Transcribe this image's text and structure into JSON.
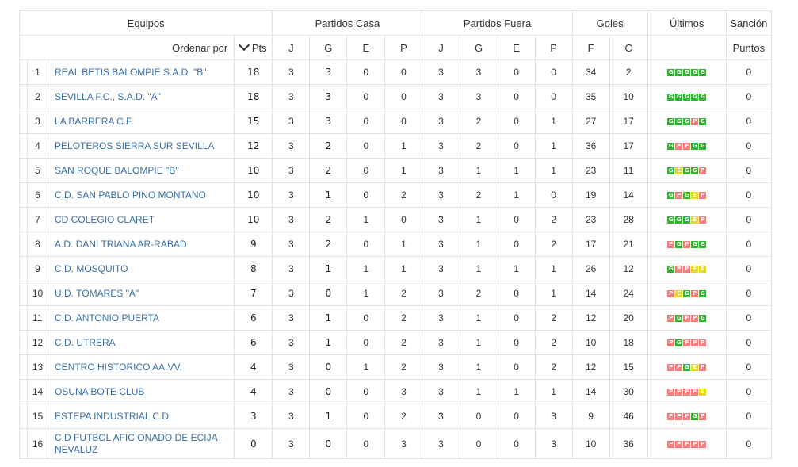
{
  "headers": {
    "equipos": "Equipos",
    "partidos_casa": "Partidos Casa",
    "partidos_fuera": "Partidos Fuera",
    "goles": "Goles",
    "ultimos": "Últimos",
    "sancion": "Sanción",
    "ordenar_por": "Ordenar por",
    "pts": "Pts",
    "j": "J",
    "g": "G",
    "e": "E",
    "p": "P",
    "f": "F",
    "c": "C",
    "puntos": "Puntos"
  },
  "colors": {
    "G": "#33b433",
    "P": "#f08080",
    "E": "#e6d92a",
    "link": "#3a70a8"
  },
  "rows": [
    {
      "pos": "1",
      "team": "REAL BETIS BALOMPIE S.A.D. \"B\"",
      "pts": "18",
      "hj": "3",
      "hg": "3",
      "he": "0",
      "hp": "0",
      "aj": "3",
      "ag": "3",
      "ae": "0",
      "ap": "0",
      "f": "34",
      "c": "2",
      "last": [
        "G",
        "G",
        "G",
        "G",
        "G"
      ],
      "sancion": "0"
    },
    {
      "pos": "2",
      "team": "SEVILLA F.C., S.A.D. \"A\"",
      "pts": "18",
      "hj": "3",
      "hg": "3",
      "he": "0",
      "hp": "0",
      "aj": "3",
      "ag": "3",
      "ae": "0",
      "ap": "0",
      "f": "35",
      "c": "10",
      "last": [
        "G",
        "G",
        "G",
        "G",
        "G"
      ],
      "sancion": "0"
    },
    {
      "pos": "3",
      "team": "LA BARRERA C.F.",
      "pts": "15",
      "hj": "3",
      "hg": "3",
      "he": "0",
      "hp": "0",
      "aj": "3",
      "ag": "2",
      "ae": "0",
      "ap": "1",
      "f": "27",
      "c": "17",
      "last": [
        "G",
        "G",
        "G",
        "P",
        "G"
      ],
      "sancion": "0"
    },
    {
      "pos": "4",
      "team": "PELOTEROS SIERRA SUR SEVILLA",
      "pts": "12",
      "hj": "3",
      "hg": "2",
      "he": "0",
      "hp": "1",
      "aj": "3",
      "ag": "2",
      "ae": "0",
      "ap": "1",
      "f": "36",
      "c": "17",
      "last": [
        "G",
        "P",
        "P",
        "G",
        "G"
      ],
      "sancion": "0"
    },
    {
      "pos": "5",
      "team": "SAN ROQUE BALOMPIE \"B\"",
      "pts": "10",
      "hj": "3",
      "hg": "2",
      "he": "0",
      "hp": "1",
      "aj": "3",
      "ag": "1",
      "ae": "1",
      "ap": "1",
      "f": "23",
      "c": "11",
      "last": [
        "G",
        "E",
        "G",
        "G",
        "P"
      ],
      "sancion": "0"
    },
    {
      "pos": "6",
      "team": "C.D. SAN PABLO PINO MONTANO",
      "pts": "10",
      "hj": "3",
      "hg": "1",
      "he": "0",
      "hp": "2",
      "aj": "3",
      "ag": "2",
      "ae": "1",
      "ap": "0",
      "f": "19",
      "c": "14",
      "last": [
        "G",
        "P",
        "G",
        "E",
        "P"
      ],
      "sancion": "0"
    },
    {
      "pos": "7",
      "team": "CD COLEGIO CLARET",
      "pts": "10",
      "hj": "3",
      "hg": "2",
      "he": "1",
      "hp": "0",
      "aj": "3",
      "ag": "1",
      "ae": "0",
      "ap": "2",
      "f": "23",
      "c": "28",
      "last": [
        "G",
        "G",
        "G",
        "E",
        "P"
      ],
      "sancion": "0"
    },
    {
      "pos": "8",
      "team": "A.D. DANI TRIANA AR-RABAD",
      "pts": "9",
      "hj": "3",
      "hg": "2",
      "he": "0",
      "hp": "1",
      "aj": "3",
      "ag": "1",
      "ae": "0",
      "ap": "2",
      "f": "17",
      "c": "21",
      "last": [
        "P",
        "G",
        "P",
        "G",
        "G"
      ],
      "sancion": "0"
    },
    {
      "pos": "9",
      "team": "C.D. MOSQUITO",
      "pts": "8",
      "hj": "3",
      "hg": "1",
      "he": "1",
      "hp": "1",
      "aj": "3",
      "ag": "1",
      "ae": "1",
      "ap": "1",
      "f": "26",
      "c": "12",
      "last": [
        "G",
        "P",
        "P",
        "E",
        "E"
      ],
      "sancion": "0"
    },
    {
      "pos": "10",
      "team": "U.D. TOMARES \"A\"",
      "pts": "7",
      "hj": "3",
      "hg": "0",
      "he": "1",
      "hp": "2",
      "aj": "3",
      "ag": "2",
      "ae": "0",
      "ap": "1",
      "f": "14",
      "c": "24",
      "last": [
        "P",
        "E",
        "G",
        "P",
        "G"
      ],
      "sancion": "0"
    },
    {
      "pos": "11",
      "team": "C.D. ANTONIO PUERTA",
      "pts": "6",
      "hj": "3",
      "hg": "1",
      "he": "0",
      "hp": "2",
      "aj": "3",
      "ag": "1",
      "ae": "0",
      "ap": "2",
      "f": "12",
      "c": "20",
      "last": [
        "P",
        "G",
        "P",
        "P",
        "G"
      ],
      "sancion": "0"
    },
    {
      "pos": "12",
      "team": "C.D. UTRERA",
      "pts": "6",
      "hj": "3",
      "hg": "1",
      "he": "0",
      "hp": "2",
      "aj": "3",
      "ag": "1",
      "ae": "0",
      "ap": "2",
      "f": "10",
      "c": "18",
      "last": [
        "P",
        "G",
        "P",
        "P",
        "P"
      ],
      "sancion": "0"
    },
    {
      "pos": "13",
      "team": "CENTRO HISTORICO AA.VV.",
      "pts": "4",
      "hj": "3",
      "hg": "0",
      "he": "1",
      "hp": "2",
      "aj": "3",
      "ag": "1",
      "ae": "0",
      "ap": "2",
      "f": "12",
      "c": "15",
      "last": [
        "P",
        "P",
        "G",
        "E",
        "P"
      ],
      "sancion": "0"
    },
    {
      "pos": "14",
      "team": "OSUNA BOTE CLUB",
      "pts": "4",
      "hj": "3",
      "hg": "0",
      "he": "0",
      "hp": "3",
      "aj": "3",
      "ag": "1",
      "ae": "1",
      "ap": "1",
      "f": "14",
      "c": "30",
      "last": [
        "P",
        "P",
        "P",
        "P",
        "E"
      ],
      "sancion": "0"
    },
    {
      "pos": "15",
      "team": "ESTEPA INDUSTRIAL C.D.",
      "pts": "3",
      "hj": "3",
      "hg": "1",
      "he": "0",
      "hp": "2",
      "aj": "3",
      "ag": "0",
      "ae": "0",
      "ap": "3",
      "f": "9",
      "c": "46",
      "last": [
        "P",
        "P",
        "P",
        "G",
        "P"
      ],
      "sancion": "0"
    },
    {
      "pos": "16",
      "team": "C.D FUTBOL AFICIONADO DE ECIJA NEVALUZ",
      "pts": "0",
      "hj": "3",
      "hg": "0",
      "he": "0",
      "hp": "3",
      "aj": "3",
      "ag": "0",
      "ae": "0",
      "ap": "3",
      "f": "10",
      "c": "36",
      "last": [
        "P",
        "P",
        "P",
        "P",
        "P"
      ],
      "sancion": "0"
    }
  ]
}
